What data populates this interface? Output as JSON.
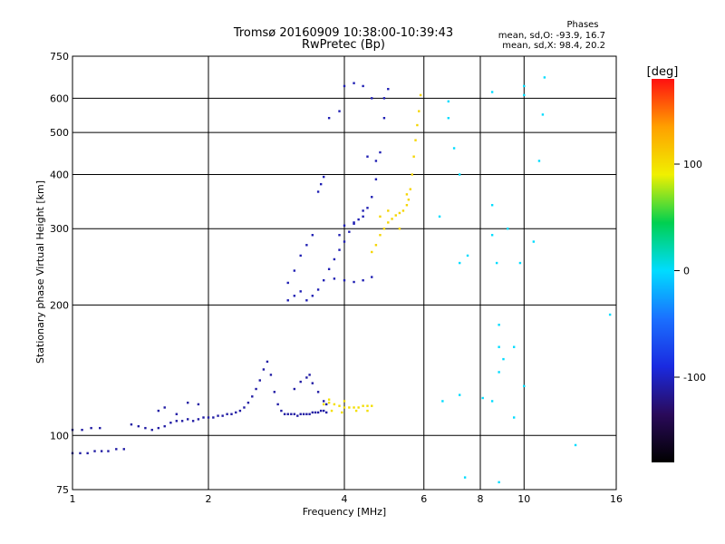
{
  "chart_data": {
    "type": "scatter",
    "title": "Tromsø 20160909 10:38:00-10:39:43",
    "subtitle": "RwPretec (Bp)",
    "xlabel": "Frequency [MHz]",
    "ylabel": "Stationary phase Virtual Height [km]",
    "x_scale": "log",
    "y_scale": "log",
    "xlim": [
      1,
      16
    ],
    "ylim": [
      75,
      750
    ],
    "x_ticks": [
      1,
      2,
      4,
      6,
      8,
      10,
      16
    ],
    "y_ticks": [
      75,
      100,
      200,
      300,
      400,
      500,
      600,
      750
    ],
    "grid": true,
    "phase_stats": {
      "heading": "Phases",
      "line_o": "mean, sd,O: -93.9, 16.7",
      "line_x": "mean, sd,X:  98.4, 20.2"
    },
    "colorbar": {
      "label": "[deg]",
      "ticks": [
        100,
        0,
        -100
      ],
      "range": [
        -180,
        180
      ],
      "colors": [
        "#000000",
        "#2a0a5a",
        "#1a2ae0",
        "#1a70ff",
        "#00dcff",
        "#00d050",
        "#f0f000",
        "#ffa000",
        "#ff1010"
      ]
    },
    "series": [
      {
        "name": "O-mode low trace",
        "phase": -110,
        "points": [
          [
            1.0,
            91
          ],
          [
            1.04,
            91
          ],
          [
            1.08,
            91
          ],
          [
            1.12,
            92
          ],
          [
            1.16,
            92
          ],
          [
            1.2,
            92
          ],
          [
            1.25,
            93
          ],
          [
            1.3,
            93
          ],
          [
            1.0,
            103
          ],
          [
            1.05,
            103
          ],
          [
            1.1,
            104
          ],
          [
            1.15,
            104
          ],
          [
            1.35,
            106
          ],
          [
            1.4,
            105
          ],
          [
            1.45,
            104
          ],
          [
            1.5,
            103
          ],
          [
            1.55,
            104
          ],
          [
            1.6,
            105
          ],
          [
            1.65,
            107
          ],
          [
            1.7,
            108
          ],
          [
            1.75,
            108
          ],
          [
            1.8,
            109
          ],
          [
            1.85,
            108
          ],
          [
            1.9,
            109
          ],
          [
            1.95,
            110
          ],
          [
            2.0,
            110
          ],
          [
            2.05,
            110
          ],
          [
            2.1,
            111
          ],
          [
            2.15,
            111
          ],
          [
            2.2,
            112
          ],
          [
            2.25,
            112
          ],
          [
            2.3,
            113
          ],
          [
            2.35,
            114
          ],
          [
            2.4,
            116
          ],
          [
            2.45,
            119
          ],
          [
            2.5,
            123
          ],
          [
            2.55,
            128
          ],
          [
            2.6,
            134
          ],
          [
            2.65,
            142
          ],
          [
            2.7,
            148
          ],
          [
            2.75,
            138
          ],
          [
            2.8,
            126
          ],
          [
            2.85,
            118
          ],
          [
            2.9,
            114
          ],
          [
            2.95,
            112
          ],
          [
            3.0,
            112
          ],
          [
            3.05,
            112
          ],
          [
            3.1,
            112
          ],
          [
            3.15,
            111
          ],
          [
            3.2,
            112
          ],
          [
            3.25,
            112
          ],
          [
            3.3,
            112
          ],
          [
            3.35,
            112
          ],
          [
            3.4,
            113
          ],
          [
            3.45,
            113
          ],
          [
            3.5,
            113
          ],
          [
            3.55,
            114
          ],
          [
            3.6,
            114
          ],
          [
            3.65,
            113
          ],
          [
            3.1,
            128
          ],
          [
            3.2,
            133
          ],
          [
            3.3,
            136
          ],
          [
            3.35,
            138
          ],
          [
            3.4,
            132
          ],
          [
            3.5,
            126
          ],
          [
            3.6,
            120
          ],
          [
            3.65,
            118
          ],
          [
            1.55,
            114
          ],
          [
            1.6,
            116
          ],
          [
            1.7,
            112
          ],
          [
            1.8,
            119
          ],
          [
            1.9,
            118
          ]
        ]
      },
      {
        "name": "X-mode low trace",
        "phase": 100,
        "points": [
          [
            3.6,
            118
          ],
          [
            3.7,
            119
          ],
          [
            3.8,
            118
          ],
          [
            3.9,
            117
          ],
          [
            4.0,
            116
          ],
          [
            4.1,
            116
          ],
          [
            4.2,
            116
          ],
          [
            4.3,
            116
          ],
          [
            4.4,
            117
          ],
          [
            4.5,
            117
          ],
          [
            4.6,
            117
          ],
          [
            3.75,
            114
          ],
          [
            3.95,
            113
          ],
          [
            4.25,
            114
          ],
          [
            4.5,
            114
          ],
          [
            3.7,
            121
          ],
          [
            4.0,
            120
          ]
        ]
      },
      {
        "name": "O-mode F trace",
        "phase": -105,
        "points": [
          [
            3.0,
            205
          ],
          [
            3.1,
            210
          ],
          [
            3.2,
            215
          ],
          [
            3.3,
            205
          ],
          [
            3.4,
            210
          ],
          [
            3.5,
            217
          ],
          [
            3.6,
            228
          ],
          [
            3.7,
            242
          ],
          [
            3.8,
            255
          ],
          [
            3.9,
            268
          ],
          [
            4.0,
            280
          ],
          [
            4.1,
            295
          ],
          [
            4.2,
            308
          ],
          [
            4.3,
            315
          ],
          [
            4.4,
            320
          ],
          [
            4.5,
            335
          ],
          [
            4.6,
            355
          ],
          [
            4.7,
            390
          ],
          [
            4.8,
            450
          ],
          [
            4.9,
            540
          ],
          [
            5.0,
            630
          ],
          [
            3.8,
            230
          ],
          [
            4.0,
            228
          ],
          [
            4.2,
            226
          ],
          [
            4.4,
            228
          ],
          [
            4.6,
            232
          ],
          [
            3.9,
            290
          ],
          [
            4.0,
            305
          ],
          [
            4.2,
            310
          ],
          [
            4.4,
            330
          ],
          [
            3.5,
            365
          ],
          [
            3.55,
            380
          ],
          [
            3.6,
            395
          ],
          [
            3.7,
            540
          ],
          [
            3.9,
            560
          ],
          [
            4.0,
            640
          ],
          [
            4.2,
            650
          ],
          [
            4.4,
            640
          ],
          [
            4.6,
            600
          ],
          [
            4.9,
            600
          ],
          [
            4.5,
            440
          ],
          [
            4.7,
            430
          ],
          [
            3.0,
            225
          ],
          [
            3.1,
            240
          ],
          [
            3.2,
            260
          ],
          [
            3.3,
            275
          ],
          [
            3.4,
            290
          ]
        ]
      },
      {
        "name": "X-mode F trace",
        "phase": 105,
        "points": [
          [
            4.6,
            265
          ],
          [
            4.7,
            275
          ],
          [
            4.8,
            290
          ],
          [
            4.9,
            300
          ],
          [
            5.0,
            310
          ],
          [
            5.1,
            316
          ],
          [
            5.2,
            322
          ],
          [
            5.3,
            326
          ],
          [
            5.4,
            330
          ],
          [
            5.5,
            340
          ],
          [
            5.55,
            350
          ],
          [
            5.6,
            370
          ],
          [
            5.65,
            400
          ],
          [
            5.7,
            440
          ],
          [
            5.75,
            480
          ],
          [
            5.8,
            520
          ],
          [
            5.85,
            560
          ],
          [
            4.8,
            320
          ],
          [
            5.0,
            330
          ],
          [
            5.3,
            300
          ],
          [
            5.5,
            360
          ],
          [
            5.9,
            610
          ]
        ]
      },
      {
        "name": "Scattered echoes",
        "phase": 0,
        "points": [
          [
            6.5,
            320
          ],
          [
            6.8,
            590
          ],
          [
            6.8,
            540
          ],
          [
            7.0,
            460
          ],
          [
            7.2,
            400
          ],
          [
            7.2,
            250
          ],
          [
            7.5,
            260
          ],
          [
            8.5,
            620
          ],
          [
            8.5,
            340
          ],
          [
            8.5,
            290
          ],
          [
            8.7,
            250
          ],
          [
            8.8,
            180
          ],
          [
            8.8,
            160
          ],
          [
            8.8,
            140
          ],
          [
            9.2,
            300
          ],
          [
            9.5,
            160
          ],
          [
            9.8,
            250
          ],
          [
            10.0,
            130
          ],
          [
            10.5,
            280
          ],
          [
            10.8,
            430
          ],
          [
            11.0,
            550
          ],
          [
            11.1,
            670
          ],
          [
            13.0,
            95
          ],
          [
            15.5,
            190
          ],
          [
            7.4,
            80
          ],
          [
            8.8,
            78
          ],
          [
            6.6,
            120
          ],
          [
            7.2,
            124
          ],
          [
            8.1,
            122
          ],
          [
            8.5,
            120
          ],
          [
            9.0,
            150
          ],
          [
            9.5,
            110
          ],
          [
            10.0,
            610
          ],
          [
            10.0,
            640
          ]
        ]
      }
    ]
  }
}
